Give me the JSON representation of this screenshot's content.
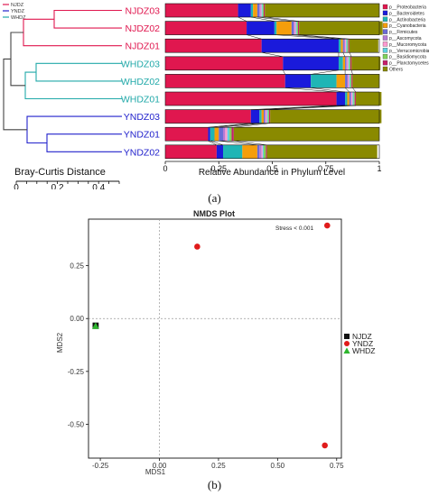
{
  "panel_a_caption": "(a)",
  "panel_b_caption": "(b)",
  "chart_data": [
    {
      "type": "bar",
      "orientation": "horizontal",
      "stacked": true,
      "xlabel": "Relative Abundance in Phylum Level",
      "xlim": [
        0,
        1
      ],
      "xticks": [
        "0",
        "0.25",
        "0.5",
        "0.75",
        "1"
      ],
      "group_legend": [
        {
          "name": "NJDZ",
          "color": "#e0174f"
        },
        {
          "name": "YNDZ",
          "color": "#2222cc"
        },
        {
          "name": "WHDZ",
          "color": "#22a9a9"
        }
      ],
      "dendrogram_label": "Bray-Curtis Distance",
      "dendrogram_ticks": [
        "0",
        "0.2",
        "0.4"
      ],
      "categories": [
        "NJDZ03",
        "NJDZ02",
        "NJDZ01",
        "WHDZ03",
        "WHDZ02",
        "WHDZ01",
        "YNDZ03",
        "YNDZ01",
        "YNDZ02"
      ],
      "category_groups": [
        "NJDZ",
        "NJDZ",
        "NJDZ",
        "WHDZ",
        "WHDZ",
        "WHDZ",
        "YNDZ",
        "YNDZ",
        "YNDZ"
      ],
      "series": [
        {
          "name": "p__Proteobacteria",
          "color": "#e0174f",
          "values": [
            0.34,
            0.38,
            0.45,
            0.55,
            0.56,
            0.8,
            0.4,
            0.2,
            0.24
          ]
        },
        {
          "name": "p__Bacteroidetes",
          "color": "#1a1adb",
          "values": [
            0.06,
            0.13,
            0.36,
            0.26,
            0.12,
            0.04,
            0.04,
            0.01,
            0.03
          ]
        },
        {
          "name": "p__Actinobacteria",
          "color": "#1fb5b5",
          "values": [
            0.01,
            0.01,
            0.01,
            0.02,
            0.12,
            0.01,
            0.01,
            0.02,
            0.09
          ]
        },
        {
          "name": "p__Cyanobacteria",
          "color": "#f59e0b",
          "values": [
            0.02,
            0.07,
            0.01,
            0.01,
            0.04,
            0.01,
            0.01,
            0.02,
            0.07
          ]
        },
        {
          "name": "p__Firmicutes",
          "color": "#6b6bd6",
          "values": [
            0.01,
            0.01,
            0.005,
            0.005,
            0.01,
            0.005,
            0.005,
            0.02,
            0.01
          ]
        },
        {
          "name": "p__Ascomycota",
          "color": "#b57ad6",
          "values": [
            0.005,
            0.005,
            0.005,
            0.005,
            0.005,
            0.005,
            0.005,
            0.01,
            0.01
          ]
        },
        {
          "name": "p__Mucoromycota",
          "color": "#ff9ad0",
          "values": [
            0.005,
            0.005,
            0.005,
            0.005,
            0.005,
            0.005,
            0.005,
            0.01,
            0.005
          ]
        },
        {
          "name": "p__Verrucomicrobia",
          "color": "#5fd3e0",
          "values": [
            0.005,
            0.005,
            0.005,
            0.005,
            0.005,
            0.005,
            0.005,
            0.01,
            0.005
          ]
        },
        {
          "name": "p__Basidiomycota",
          "color": "#7fd35a",
          "values": [
            0.005,
            0.005,
            0.005,
            0.005,
            0.005,
            0.005,
            0.005,
            0.01,
            0.01
          ]
        },
        {
          "name": "p__Planctomycetes",
          "color": "#c71f6a",
          "values": [
            0.005,
            0.005,
            0.005,
            0.005,
            0.005,
            0.005,
            0.005,
            0.01,
            0.005
          ]
        },
        {
          "name": "Others",
          "color": "#8a8a00",
          "values": [
            0.535,
            0.39,
            0.135,
            0.135,
            0.125,
            0.12,
            0.52,
            0.68,
            0.515
          ]
        }
      ]
    },
    {
      "type": "scatter",
      "title": "NMDS Plot",
      "xlabel": "MDS1",
      "ylabel": "MDS2",
      "xlim": [
        -0.3,
        0.77
      ],
      "ylim": [
        -0.66,
        0.47
      ],
      "xticks": [
        -0.25,
        0.0,
        0.25,
        0.5,
        0.75
      ],
      "xtick_labels": [
        "-0.25",
        "0.00",
        "0.25",
        "0.50",
        "0.75"
      ],
      "yticks": [
        0.25,
        0.0,
        -0.25,
        -0.5
      ],
      "ytick_labels": [
        "0.25",
        "0.00",
        "-0.25",
        "-0.50"
      ],
      "annotation": "Stress < 0.001",
      "reference_lines": {
        "x": 0,
        "y": 0
      },
      "series": [
        {
          "name": "NJDZ",
          "color": "#111111",
          "marker": "square",
          "points": [
            [
              -0.27,
              -0.035
            ],
            [
              -0.27,
              -0.033
            ]
          ]
        },
        {
          "name": "YNDZ",
          "color": "#e01b1b",
          "marker": "circle",
          "points": [
            [
              0.71,
              0.44
            ],
            [
              0.16,
              0.34
            ],
            [
              0.7,
              -0.6
            ]
          ]
        },
        {
          "name": "WHDZ",
          "color": "#2db52d",
          "marker": "triangle",
          "points": [
            [
              -0.27,
              -0.035
            ]
          ]
        }
      ]
    }
  ]
}
